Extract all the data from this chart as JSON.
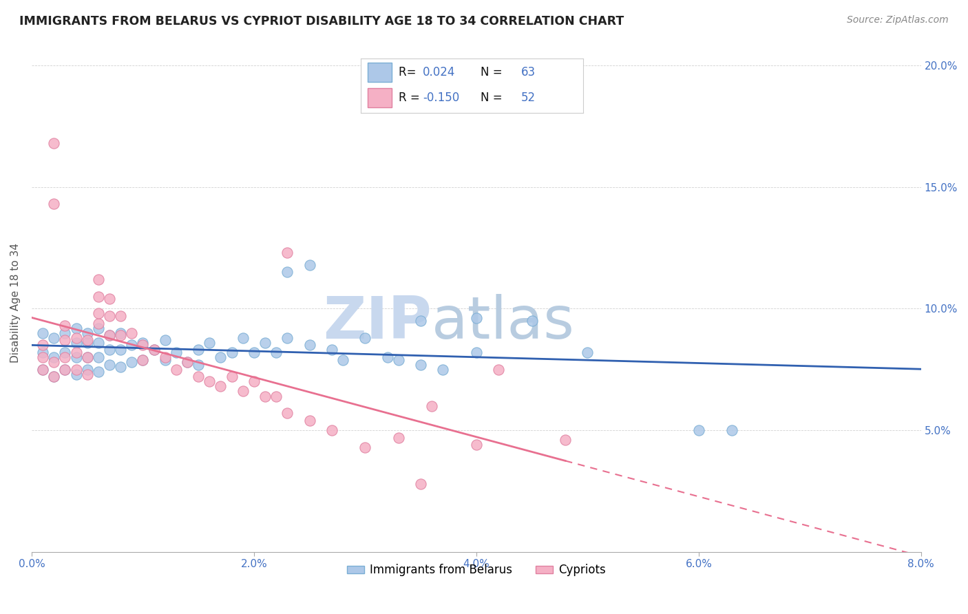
{
  "title": "IMMIGRANTS FROM BELARUS VS CYPRIOT DISABILITY AGE 18 TO 34 CORRELATION CHART",
  "source": "Source: ZipAtlas.com",
  "ylabel": "Disability Age 18 to 34",
  "xlim": [
    0.0,
    0.08
  ],
  "ylim": [
    0.0,
    0.205
  ],
  "xtick_labels": [
    "0.0%",
    "2.0%",
    "4.0%",
    "6.0%",
    "8.0%"
  ],
  "xtick_vals": [
    0.0,
    0.02,
    0.04,
    0.06,
    0.08
  ],
  "ytick_labels": [
    "5.0%",
    "10.0%",
    "15.0%",
    "20.0%"
  ],
  "ytick_vals": [
    0.05,
    0.1,
    0.15,
    0.2
  ],
  "R1": "0.024",
  "N1": "63",
  "R2": "-0.150",
  "N2": "52",
  "series1_face": "#adc8e8",
  "series1_edge": "#7aaed4",
  "series2_face": "#f5b0c5",
  "series2_edge": "#e080a0",
  "line1_color": "#3060b0",
  "line2_color": "#e87090",
  "watermark_top": "ZIP",
  "watermark_bot": "atlas",
  "label1": "Immigrants from Belarus",
  "label2": "Cypriots",
  "series1_x": [
    0.001,
    0.001,
    0.001,
    0.002,
    0.002,
    0.002,
    0.003,
    0.003,
    0.003,
    0.004,
    0.004,
    0.004,
    0.004,
    0.005,
    0.005,
    0.005,
    0.005,
    0.006,
    0.006,
    0.006,
    0.006,
    0.007,
    0.007,
    0.007,
    0.008,
    0.008,
    0.008,
    0.009,
    0.009,
    0.01,
    0.01,
    0.011,
    0.012,
    0.012,
    0.013,
    0.014,
    0.015,
    0.015,
    0.016,
    0.017,
    0.018,
    0.019,
    0.02,
    0.021,
    0.022,
    0.023,
    0.025,
    0.027,
    0.028,
    0.03,
    0.032,
    0.035,
    0.04,
    0.045,
    0.05,
    0.06,
    0.025,
    0.04,
    0.063,
    0.023,
    0.033,
    0.035,
    0.037
  ],
  "series1_y": [
    0.075,
    0.082,
    0.09,
    0.072,
    0.08,
    0.088,
    0.075,
    0.082,
    0.09,
    0.073,
    0.08,
    0.086,
    0.092,
    0.075,
    0.08,
    0.086,
    0.09,
    0.074,
    0.08,
    0.086,
    0.092,
    0.077,
    0.083,
    0.089,
    0.076,
    0.083,
    0.09,
    0.078,
    0.085,
    0.079,
    0.086,
    0.083,
    0.079,
    0.087,
    0.082,
    0.078,
    0.077,
    0.083,
    0.086,
    0.08,
    0.082,
    0.088,
    0.082,
    0.086,
    0.082,
    0.088,
    0.085,
    0.083,
    0.079,
    0.088,
    0.08,
    0.077,
    0.082,
    0.095,
    0.082,
    0.05,
    0.118,
    0.096,
    0.05,
    0.115,
    0.079,
    0.095,
    0.075
  ],
  "series2_x": [
    0.001,
    0.001,
    0.001,
    0.002,
    0.002,
    0.002,
    0.003,
    0.003,
    0.003,
    0.003,
    0.004,
    0.004,
    0.004,
    0.005,
    0.005,
    0.005,
    0.006,
    0.006,
    0.006,
    0.006,
    0.007,
    0.007,
    0.007,
    0.008,
    0.008,
    0.009,
    0.01,
    0.01,
    0.011,
    0.012,
    0.013,
    0.014,
    0.015,
    0.016,
    0.017,
    0.018,
    0.019,
    0.02,
    0.021,
    0.022,
    0.023,
    0.025,
    0.027,
    0.03,
    0.033,
    0.035,
    0.036,
    0.04,
    0.042,
    0.048,
    0.023,
    0.002
  ],
  "series2_y": [
    0.075,
    0.08,
    0.085,
    0.072,
    0.078,
    0.168,
    0.075,
    0.08,
    0.087,
    0.093,
    0.075,
    0.082,
    0.088,
    0.073,
    0.08,
    0.087,
    0.094,
    0.112,
    0.105,
    0.098,
    0.104,
    0.097,
    0.089,
    0.097,
    0.089,
    0.09,
    0.085,
    0.079,
    0.083,
    0.08,
    0.075,
    0.078,
    0.072,
    0.07,
    0.068,
    0.072,
    0.066,
    0.07,
    0.064,
    0.064,
    0.057,
    0.054,
    0.05,
    0.043,
    0.047,
    0.028,
    0.06,
    0.044,
    0.075,
    0.046,
    0.123,
    0.143
  ]
}
